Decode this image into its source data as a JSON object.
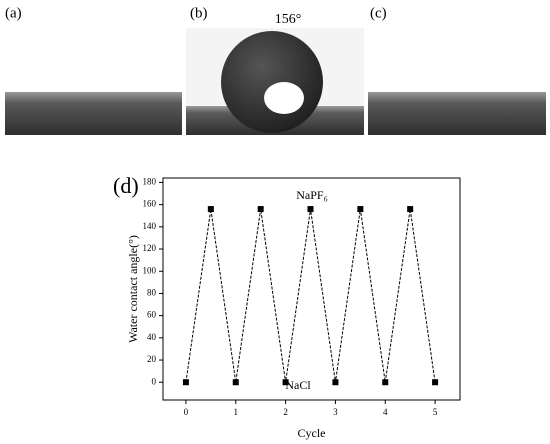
{
  "panels": [
    {
      "label": "(a)"
    },
    {
      "label": "(b)",
      "annotation": "156°"
    },
    {
      "label": "(c)"
    }
  ],
  "chart_data": {
    "type": "line",
    "panel_label": "(d)",
    "xlabel": "Cycle",
    "ylabel": "Water contact angle(°)",
    "x": [
      0,
      0.5,
      1,
      1.5,
      2,
      2.5,
      3,
      3.5,
      4,
      4.5,
      5
    ],
    "series": [
      {
        "color": "#000000",
        "values": [
          0,
          156,
          0,
          156,
          0,
          156,
          0,
          156,
          0,
          156,
          0
        ]
      }
    ],
    "annotations": [
      "NaPF₆",
      "NaCl"
    ],
    "xlim": [
      -0.46,
      5.5
    ],
    "ylim": [
      -16,
      184
    ],
    "xticks": [
      0,
      1,
      2,
      3,
      4,
      5
    ],
    "yticks": [
      0,
      20,
      40,
      60,
      80,
      100,
      120,
      140,
      160,
      180
    ]
  }
}
